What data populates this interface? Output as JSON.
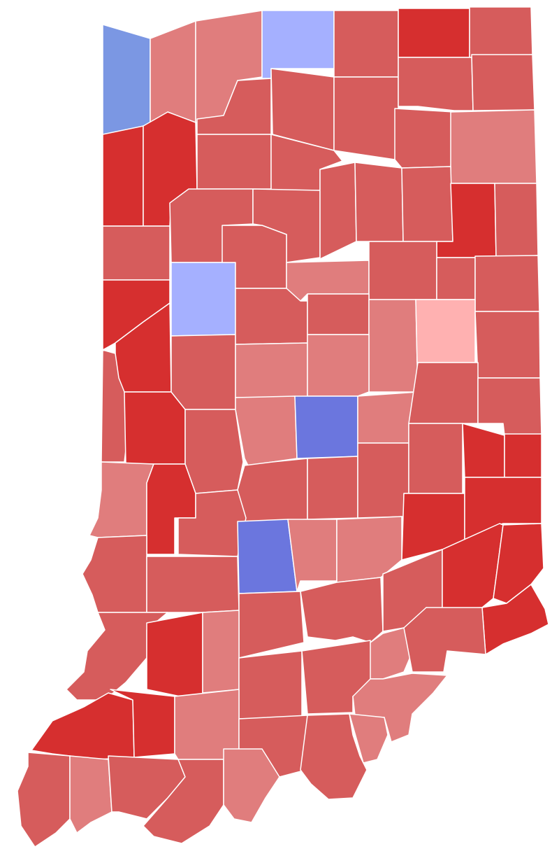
{
  "map": {
    "palette": [
      "#d62f2f",
      "#d65c5c",
      "#e07d7d",
      "#ffb1b1",
      "#a5b0ff",
      "#7b97e3",
      "#6b76de"
    ],
    "border": "#ffffff"
  }
}
